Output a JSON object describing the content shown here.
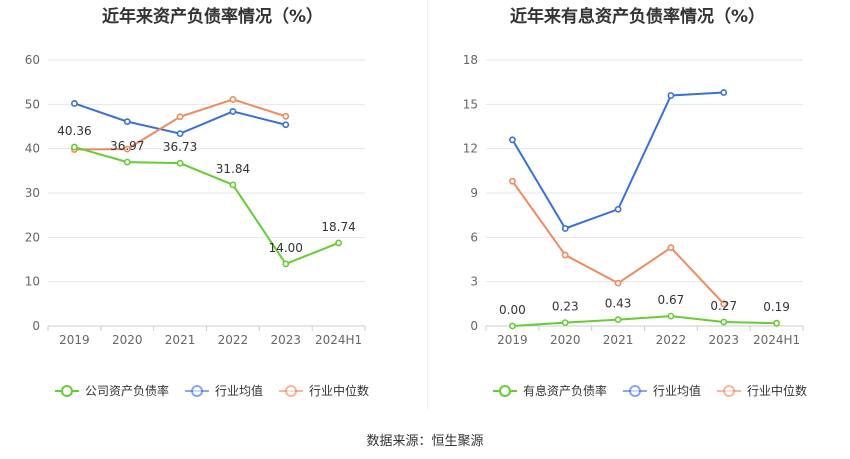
{
  "chart_data": [
    {
      "type": "line",
      "title": "近年来资产负债率情况（%）",
      "categories": [
        "2019",
        "2020",
        "2021",
        "2022",
        "2023",
        "2024H1"
      ],
      "ylim": [
        0,
        60
      ],
      "yticks": [
        0,
        10,
        20,
        30,
        40,
        50,
        60
      ],
      "grid": true,
      "legend_position": "bottom",
      "series": [
        {
          "name": "公司资产负债率",
          "color": "#66cc33",
          "values": [
            40.36,
            36.97,
            36.73,
            31.84,
            14.0,
            18.74
          ],
          "labels": [
            "40.36",
            "36.97",
            "36.73",
            "31.84",
            "14.00",
            "18.74"
          ]
        },
        {
          "name": "行业均值",
          "color": "#3a6fd8",
          "values": [
            50.2,
            46.1,
            43.4,
            48.4,
            45.4,
            null
          ]
        },
        {
          "name": "行业中位数",
          "color": "#f08a5d",
          "values": [
            39.8,
            39.9,
            47.2,
            51.1,
            47.3,
            null
          ]
        }
      ]
    },
    {
      "type": "line",
      "title": "近年来有息资产负债率情况（%）",
      "categories": [
        "2019",
        "2020",
        "2021",
        "2022",
        "2023",
        "2024H1"
      ],
      "ylim": [
        0,
        18
      ],
      "yticks": [
        0,
        3,
        6,
        9,
        12,
        15,
        18
      ],
      "grid": true,
      "legend_position": "bottom",
      "series": [
        {
          "name": "有息资产负债率",
          "color": "#66cc33",
          "values": [
            0.0,
            0.23,
            0.43,
            0.67,
            0.27,
            0.19
          ],
          "labels": [
            "0.00",
            "0.23",
            "0.43",
            "0.67",
            "0.27",
            "0.19"
          ]
        },
        {
          "name": "行业均值",
          "color": "#3a6fd8",
          "values": [
            12.6,
            6.6,
            7.9,
            15.6,
            15.8,
            null
          ]
        },
        {
          "name": "行业中位数",
          "color": "#f08a5d",
          "values": [
            9.8,
            4.8,
            2.9,
            5.3,
            1.5,
            null
          ]
        }
      ]
    }
  ],
  "source_text": "数据来源：恒生聚源",
  "colors": {
    "grid": "#e6e6e6",
    "axis": "#cccccc",
    "tick_text": "#666666",
    "label_text": "#333333"
  }
}
